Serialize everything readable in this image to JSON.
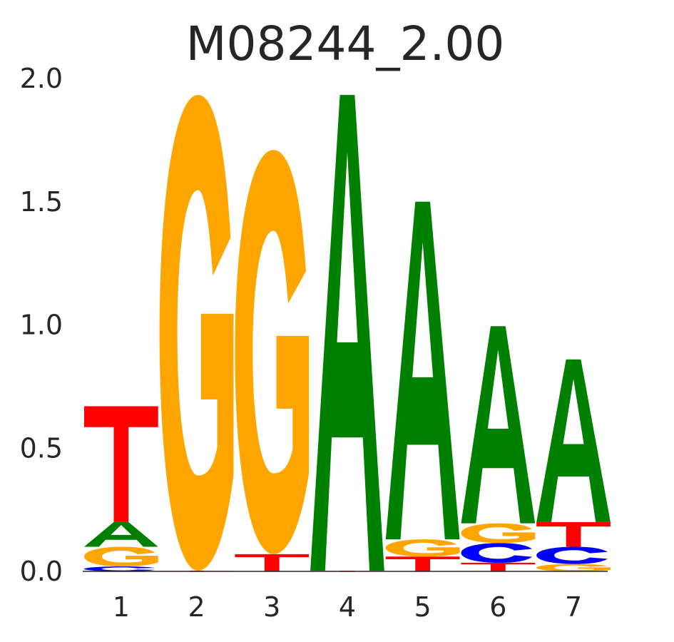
{
  "chart_data": {
    "type": "sequence-logo",
    "title": "M08244_2.00",
    "xlabel": "",
    "ylabel": "",
    "ylim": [
      0,
      2.0
    ],
    "y_ticks": [
      "0.0",
      "0.5",
      "1.0",
      "1.5",
      "2.0"
    ],
    "positions": [
      "1",
      "2",
      "3",
      "4",
      "5",
      "6",
      "7"
    ],
    "letter_colors": {
      "A": "#008000",
      "C": "#0000ff",
      "G": "#ffa500",
      "T": "#ff0000"
    },
    "columns": [
      [
        {
          "letter": "C",
          "height": 0.02
        },
        {
          "letter": "G",
          "height": 0.08
        },
        {
          "letter": "A",
          "height": 0.1
        },
        {
          "letter": "T",
          "height": 0.47
        }
      ],
      [
        {
          "letter": "T",
          "height": 0.003
        },
        {
          "letter": "G",
          "height": 1.93
        }
      ],
      [
        {
          "letter": "T",
          "height": 0.07
        },
        {
          "letter": "G",
          "height": 1.64
        }
      ],
      [
        {
          "letter": "T",
          "height": 0.003
        },
        {
          "letter": "A",
          "height": 1.93
        }
      ],
      [
        {
          "letter": "T",
          "height": 0.06
        },
        {
          "letter": "G",
          "height": 0.07
        },
        {
          "letter": "A",
          "height": 1.37
        }
      ],
      [
        {
          "letter": "T",
          "height": 0.035
        },
        {
          "letter": "C",
          "height": 0.08
        },
        {
          "letter": "G",
          "height": 0.08
        },
        {
          "letter": "A",
          "height": 0.8
        }
      ],
      [
        {
          "letter": "G",
          "height": 0.03
        },
        {
          "letter": "C",
          "height": 0.07
        },
        {
          "letter": "T",
          "height": 0.1
        },
        {
          "letter": "A",
          "height": 0.66
        }
      ]
    ]
  }
}
